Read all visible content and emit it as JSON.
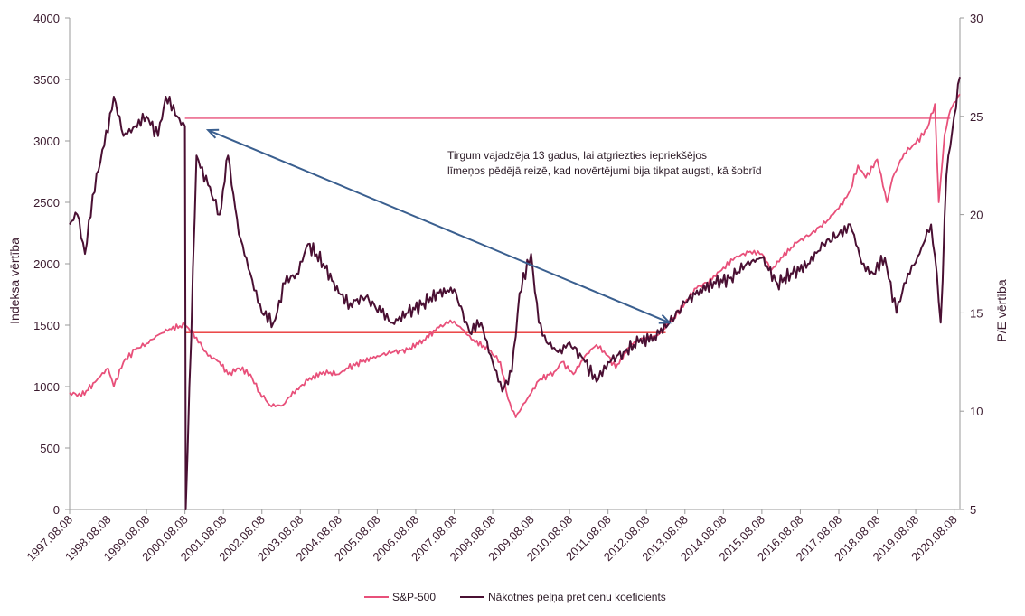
{
  "colors": {
    "sp500": "#e8507a",
    "pe": "#4a1033",
    "ref_top": "#e8507a",
    "ref_bottom": "#e83030",
    "arrow": "#3a5f8f",
    "axis": "#9a9a9a",
    "text": "#3a1a2e"
  },
  "chart_data": {
    "type": "line",
    "title": "",
    "xlabel": "",
    "ylabel": "Indeksa vērtība",
    "y2label": "P/E vērtība",
    "ylim": [
      0,
      4000
    ],
    "y2lim": [
      5,
      30
    ],
    "yticks": [
      "0",
      "500",
      "1000",
      "1500",
      "2000",
      "2500",
      "3000",
      "3500",
      "4000"
    ],
    "y2ticks": [
      "5",
      "10",
      "15",
      "20",
      "25",
      "30"
    ],
    "xlim": [
      1997.6,
      2020.75
    ],
    "xticks": [
      "1997.08.08",
      "1998.08.08",
      "1999.08.08",
      "2000.08.08",
      "2001.08.08",
      "2002.08.08",
      "2003.08.08",
      "2004.08.08",
      "2005.08.08",
      "2006.08.08",
      "2007.08.08",
      "2008.08.08",
      "2009.08.08",
      "2010.08.08",
      "2011.08.08",
      "2012.08.08",
      "2013.08.08",
      "2014.08.08",
      "2015.08.08",
      "2016.08.08",
      "2017.08.08",
      "2018.08.08",
      "2019.08.08",
      "2020.08.08"
    ],
    "legend_position": "bottom",
    "grid": false,
    "series": [
      {
        "name": "S&P-500",
        "axis": "left",
        "x": [
          1997.6,
          1997.9,
          1998.3,
          1998.6,
          1998.75,
          1999.0,
          1999.3,
          1999.6,
          1999.9,
          2000.2,
          2000.6,
          2000.9,
          2001.2,
          2001.5,
          2001.72,
          2002.0,
          2002.3,
          2002.55,
          2002.8,
          2003.15,
          2003.5,
          2003.8,
          2004.2,
          2004.6,
          2004.8,
          2005.2,
          2005.6,
          2006.0,
          2006.4,
          2006.8,
          2007.2,
          2007.5,
          2007.8,
          2008.1,
          2008.5,
          2008.8,
          2009.0,
          2009.2,
          2009.5,
          2009.8,
          2010.2,
          2010.4,
          2010.7,
          2011.0,
          2011.3,
          2011.6,
          2011.8,
          2012.2,
          2012.6,
          2012.9,
          2013.3,
          2013.6,
          2013.9,
          2014.3,
          2014.6,
          2014.9,
          2015.3,
          2015.6,
          2015.85,
          2016.1,
          2016.5,
          2016.9,
          2017.3,
          2017.6,
          2017.9,
          2018.1,
          2018.3,
          2018.6,
          2018.85,
          2019.0,
          2019.3,
          2019.6,
          2019.9,
          2020.1,
          2020.2,
          2020.35,
          2020.5,
          2020.75
        ],
        "values": [
          950,
          920,
          1050,
          1150,
          1000,
          1200,
          1300,
          1350,
          1420,
          1470,
          1500,
          1400,
          1250,
          1200,
          1100,
          1150,
          1100,
          950,
          850,
          850,
          980,
          1050,
          1120,
          1100,
          1150,
          1200,
          1250,
          1280,
          1300,
          1380,
          1480,
          1540,
          1470,
          1380,
          1300,
          1200,
          900,
          750,
          900,
          1050,
          1120,
          1200,
          1100,
          1250,
          1340,
          1250,
          1150,
          1350,
          1400,
          1420,
          1560,
          1680,
          1800,
          1870,
          1970,
          2050,
          2100,
          2080,
          1950,
          2050,
          2170,
          2250,
          2350,
          2450,
          2600,
          2800,
          2700,
          2850,
          2500,
          2700,
          2900,
          2980,
          3100,
          3300,
          2500,
          3050,
          3250,
          3380
        ]
      },
      {
        "name": "Nākotnes peļņa pret cenu koeficients",
        "axis": "right",
        "x": [
          1997.6,
          1997.8,
          1998.0,
          1998.2,
          1998.5,
          1998.75,
          1999.0,
          1999.3,
          1999.6,
          1999.9,
          2000.1,
          2000.4,
          2000.6,
          2000.62,
          2000.9,
          2001.2,
          2001.5,
          2001.72,
          2002.0,
          2002.3,
          2002.6,
          2002.9,
          2003.2,
          2003.5,
          2003.8,
          2004.2,
          2004.6,
          2004.9,
          2005.3,
          2005.7,
          2006.0,
          2006.4,
          2006.8,
          2007.2,
          2007.6,
          2008.0,
          2008.3,
          2008.6,
          2008.85,
          2009.1,
          2009.3,
          2009.6,
          2009.8,
          2010.0,
          2010.3,
          2010.6,
          2011.0,
          2011.3,
          2011.6,
          2012.0,
          2012.4,
          2012.8,
          2013.2,
          2013.6,
          2014.0,
          2014.4,
          2014.8,
          2015.2,
          2015.6,
          2016.0,
          2016.4,
          2016.8,
          2017.2,
          2017.6,
          2017.9,
          2018.2,
          2018.5,
          2018.8,
          2019.1,
          2019.4,
          2019.7,
          2020.0,
          2020.15,
          2020.25,
          2020.4,
          2020.6,
          2020.75
        ],
        "values": [
          19.5,
          20.0,
          18.0,
          21.0,
          23.5,
          26.0,
          24.0,
          24.5,
          25.0,
          24.0,
          26.0,
          25.0,
          24.5,
          5.0,
          23.0,
          21.5,
          20.0,
          23.0,
          19.0,
          17.0,
          15.0,
          14.5,
          16.5,
          17.0,
          18.5,
          17.5,
          16.0,
          15.5,
          15.8,
          15.0,
          14.5,
          15.0,
          15.5,
          16.0,
          16.2,
          14.0,
          14.5,
          12.5,
          11.0,
          12.0,
          16.0,
          18.0,
          14.5,
          13.5,
          13.0,
          13.5,
          12.5,
          11.5,
          12.5,
          13.0,
          13.5,
          13.8,
          14.5,
          15.5,
          16.2,
          16.5,
          16.8,
          17.5,
          17.8,
          16.5,
          17.0,
          17.5,
          18.5,
          19.0,
          19.5,
          17.5,
          17.0,
          17.8,
          15.0,
          17.0,
          18.0,
          19.5,
          17.0,
          14.5,
          22.0,
          25.0,
          27.0
        ]
      }
    ],
    "reference_lines": [
      {
        "axis": "right",
        "value": 24.9,
        "x_from": 2000.6,
        "x_to": 2020.5,
        "color_key": "ref_top"
      },
      {
        "axis": "right",
        "value": 14.0,
        "x_from": 2000.6,
        "x_to": 2013.1,
        "color_key": "ref_bottom"
      }
    ],
    "arrow": {
      "axis": "right",
      "x_from": 2001.2,
      "y_from": 24.3,
      "x_to": 2013.2,
      "y_to": 14.5
    },
    "annotation": {
      "lines": [
        "Tirgum vajadzēja 13 gadus, lai atgriezties iepriekšējos",
        "līmeņos pēdējā reizē, kad novērtējumi bija tikpat augsti, kā šobrīd"
      ]
    }
  }
}
